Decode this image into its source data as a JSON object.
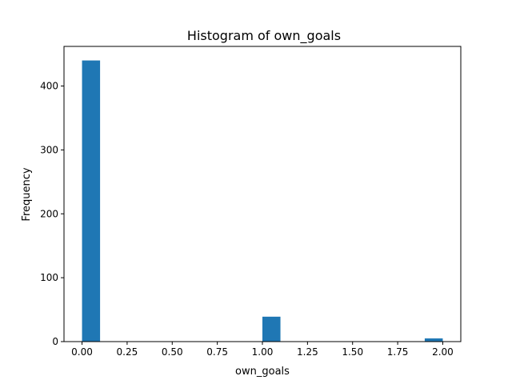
{
  "chart_data": {
    "type": "bar",
    "subtype": "histogram",
    "title": "Histogram of own_goals",
    "xlabel": "own_goals",
    "ylabel": "Frequency",
    "xlim": [
      -0.1,
      2.1
    ],
    "ylim": [
      0,
      462
    ],
    "bar_color": "#1f77b4",
    "grid": false,
    "bin_edges": [
      0.0,
      0.1,
      0.2,
      0.3,
      0.4,
      0.5,
      0.6,
      0.7,
      0.8,
      0.9,
      1.0,
      1.1,
      1.2,
      1.3,
      1.4,
      1.5,
      1.6,
      1.7,
      1.8,
      1.9,
      2.0
    ],
    "counts": [
      440,
      0,
      0,
      0,
      0,
      0,
      0,
      0,
      0,
      0,
      39,
      0,
      0,
      0,
      0,
      0,
      0,
      0,
      0,
      5
    ],
    "x_ticks": [
      0.0,
      0.25,
      0.5,
      0.75,
      1.0,
      1.25,
      1.5,
      1.75,
      2.0
    ],
    "x_tick_labels": [
      "0.00",
      "0.25",
      "0.50",
      "0.75",
      "1.00",
      "1.25",
      "1.50",
      "1.75",
      "2.00"
    ],
    "y_ticks": [
      0,
      100,
      200,
      300,
      400
    ],
    "y_tick_labels": [
      "0",
      "100",
      "200",
      "300",
      "400"
    ]
  }
}
